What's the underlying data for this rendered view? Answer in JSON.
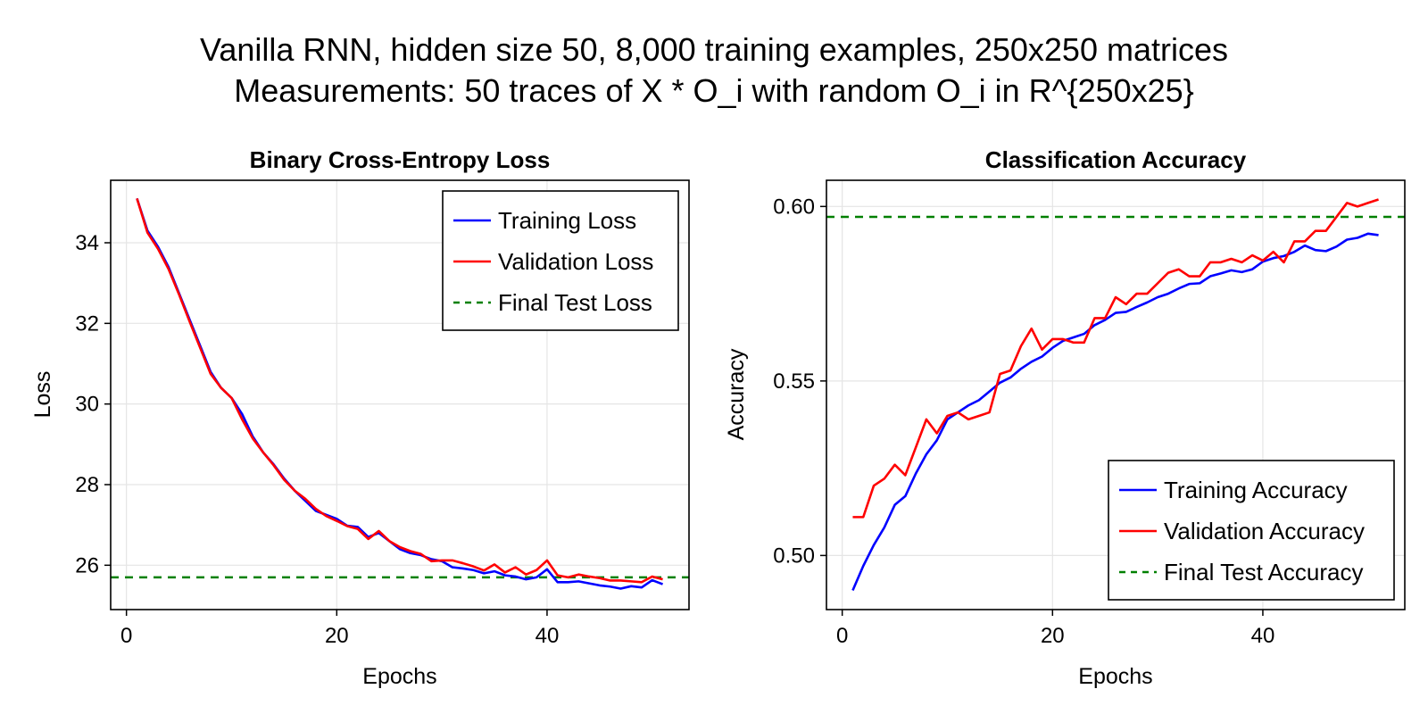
{
  "figure": {
    "title_line1": "Vanilla RNN, hidden size 50, 8,000 training examples, 250x250 matrices",
    "title_line2": "Measurements: 50 traces of X * O_i with random O_i in R^{250x25}"
  },
  "colors": {
    "training": "#0000ff",
    "validation": "#ff0000",
    "final_test": "#008000",
    "grid": "#e5e5e5"
  },
  "chart_data": [
    {
      "type": "line",
      "title": "Binary Cross-Entropy Loss",
      "xlabel": "Epochs",
      "ylabel": "Loss",
      "xlim": [
        -1.5,
        53.5
      ],
      "ylim": [
        24.9,
        35.55
      ],
      "xticks": [
        0,
        20,
        40
      ],
      "yticks": [
        26,
        28,
        30,
        32,
        34
      ],
      "grid": true,
      "legend_position": "top-right",
      "x": [
        1,
        2,
        3,
        4,
        5,
        6,
        7,
        8,
        9,
        10,
        11,
        12,
        13,
        14,
        15,
        16,
        17,
        18,
        19,
        20,
        21,
        22,
        23,
        24,
        25,
        26,
        27,
        28,
        29,
        30,
        31,
        32,
        33,
        34,
        35,
        36,
        37,
        38,
        39,
        40,
        41,
        42,
        43,
        44,
        45,
        46,
        47,
        48,
        49,
        50,
        51
      ],
      "series": [
        {
          "name": "Training Loss",
          "color": "#0000ff",
          "style": "solid",
          "values": [
            35.1,
            34.3,
            33.9,
            33.4,
            32.75,
            32.1,
            31.45,
            30.8,
            30.4,
            30.15,
            29.75,
            29.2,
            28.8,
            28.5,
            28.15,
            27.85,
            27.6,
            27.35,
            27.25,
            27.15,
            26.98,
            26.95,
            26.7,
            26.8,
            26.6,
            26.4,
            26.3,
            26.25,
            26.15,
            26.1,
            25.95,
            25.92,
            25.88,
            25.8,
            25.85,
            25.75,
            25.72,
            25.65,
            25.7,
            25.9,
            25.58,
            25.58,
            25.6,
            25.55,
            25.5,
            25.47,
            25.42,
            25.48,
            25.45,
            25.63,
            25.53
          ]
        },
        {
          "name": "Validation Loss",
          "color": "#ff0000",
          "style": "solid",
          "values": [
            35.1,
            34.25,
            33.85,
            33.35,
            32.72,
            32.05,
            31.4,
            30.75,
            30.4,
            30.15,
            29.62,
            29.15,
            28.8,
            28.48,
            28.12,
            27.85,
            27.65,
            27.4,
            27.22,
            27.1,
            26.97,
            26.9,
            26.65,
            26.85,
            26.6,
            26.45,
            26.35,
            26.28,
            26.1,
            26.12,
            26.12,
            26.05,
            25.97,
            25.87,
            26.02,
            25.82,
            25.95,
            25.77,
            25.88,
            26.12,
            25.75,
            25.7,
            25.77,
            25.72,
            25.68,
            25.62,
            25.62,
            25.6,
            25.58,
            25.72,
            25.65
          ]
        },
        {
          "name": "Final Test Loss",
          "color": "#008000",
          "style": "dashed",
          "hline": 25.7
        }
      ]
    },
    {
      "type": "line",
      "title": "Classification Accuracy",
      "xlabel": "Epochs",
      "ylabel": "Accuracy",
      "xlim": [
        -1.5,
        53.5
      ],
      "ylim": [
        0.4845,
        0.6075
      ],
      "xticks": [
        0,
        20,
        40
      ],
      "yticks": [
        0.5,
        0.55,
        0.6
      ],
      "ytick_labels": [
        "0.50",
        "0.55",
        "0.60"
      ],
      "grid": true,
      "legend_position": "bottom-right",
      "x": [
        1,
        2,
        3,
        4,
        5,
        6,
        7,
        8,
        9,
        10,
        11,
        12,
        13,
        14,
        15,
        16,
        17,
        18,
        19,
        20,
        21,
        22,
        23,
        24,
        25,
        26,
        27,
        28,
        29,
        30,
        31,
        32,
        33,
        34,
        35,
        36,
        37,
        38,
        39,
        40,
        41,
        42,
        43,
        44,
        45,
        46,
        47,
        48,
        49,
        50,
        51
      ],
      "series": [
        {
          "name": "Training Accuracy",
          "color": "#0000ff",
          "style": "solid",
          "values": [
            0.49,
            0.497,
            0.503,
            0.508,
            0.5145,
            0.517,
            0.5235,
            0.529,
            0.533,
            0.539,
            0.541,
            0.543,
            0.5445,
            0.547,
            0.5495,
            0.551,
            0.5535,
            0.5555,
            0.557,
            0.5595,
            0.5615,
            0.5625,
            0.5635,
            0.566,
            0.5675,
            0.5695,
            0.5698,
            0.5712,
            0.5725,
            0.574,
            0.575,
            0.5765,
            0.5778,
            0.578,
            0.58,
            0.5808,
            0.5817,
            0.5812,
            0.582,
            0.5842,
            0.5852,
            0.5858,
            0.587,
            0.5888,
            0.5875,
            0.5872,
            0.5885,
            0.5905,
            0.591,
            0.5922,
            0.5918
          ]
        },
        {
          "name": "Validation Accuracy",
          "color": "#ff0000",
          "style": "solid",
          "values": [
            0.511,
            0.511,
            0.52,
            0.522,
            0.526,
            0.523,
            0.531,
            0.539,
            0.535,
            0.54,
            0.541,
            0.539,
            0.54,
            0.541,
            0.552,
            0.553,
            0.56,
            0.565,
            0.559,
            0.562,
            0.562,
            0.561,
            0.561,
            0.568,
            0.568,
            0.574,
            0.572,
            0.575,
            0.575,
            0.578,
            0.581,
            0.582,
            0.58,
            0.58,
            0.584,
            0.584,
            0.585,
            0.584,
            0.586,
            0.5845,
            0.587,
            0.584,
            0.59,
            0.59,
            0.593,
            0.593,
            0.597,
            0.601,
            0.6,
            0.601,
            0.602
          ]
        },
        {
          "name": "Final Test Accuracy",
          "color": "#008000",
          "style": "dashed",
          "hline": 0.597
        }
      ]
    }
  ]
}
